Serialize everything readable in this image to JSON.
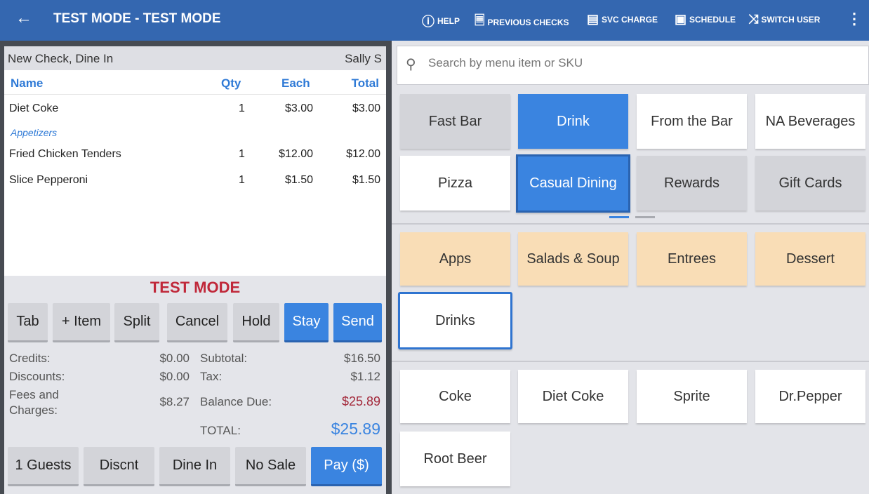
{
  "header": {
    "title": "TEST MODE - TEST MODE",
    "actions": [
      {
        "label": "HELP",
        "icon": "help-circle-icon"
      },
      {
        "label": "PREVIOUS CHECKS",
        "icon": "receipt-back-icon"
      },
      {
        "label": "SVC CHARGE",
        "icon": "card-icon"
      },
      {
        "label": "SCHEDULE",
        "icon": "calendar-icon"
      },
      {
        "label": "SWITCH USER",
        "icon": "shuffle-icon"
      }
    ]
  },
  "check": {
    "title": "New Check, Dine In",
    "server": "Sally S",
    "columns": [
      "Name",
      "Qty",
      "Each",
      "Total"
    ],
    "rows": [
      {
        "name": "Diet Coke",
        "qty": "1",
        "each": "$3.00",
        "total": "$3.00"
      },
      {
        "category": "Appetizers"
      },
      {
        "name": "Fried Chicken Tenders",
        "qty": "1",
        "each": "$12.00",
        "total": "$12.00"
      },
      {
        "name": "Slice Pepperoni",
        "qty": "1",
        "each": "$1.50",
        "total": "$1.50"
      }
    ],
    "mode_banner": "TEST MODE",
    "actions": [
      "Tab",
      "+ Item",
      "Split",
      "Cancel",
      "Hold",
      "Stay",
      "Send"
    ],
    "totals": {
      "credits_label": "Credits:",
      "credits": "$0.00",
      "discounts_label": "Discounts:",
      "discounts": "$0.00",
      "fees_label": "Fees and Charges:",
      "fees": "$8.27",
      "subtotal_label": "Subtotal:",
      "subtotal": "$16.50",
      "tax_label": "Tax:",
      "tax": "$1.12",
      "balance_label": "Balance Due:",
      "balance": "$25.89",
      "total_label": "TOTAL:",
      "total": "$25.89"
    },
    "footer": [
      "1 Guests",
      "Discnt",
      "Dine In",
      "No Sale",
      "Pay ($)"
    ]
  },
  "search": {
    "placeholder": "Search by menu item or SKU"
  },
  "menus": [
    "Fast Bar",
    "Drink",
    "From the Bar",
    "NA Beverages",
    "Pizza",
    "Casual Dining",
    "Rewards",
    "Gift Cards"
  ],
  "categories": [
    "Apps",
    "Salads & Soup",
    "Entrees",
    "Dessert",
    "Drinks"
  ],
  "items": [
    "Coke",
    "Diet Coke",
    "Sprite",
    "Dr.Pepper",
    "Root Beer"
  ],
  "colors": {
    "accent": "#3a84e0",
    "header": "#3467b0",
    "danger": "#c0283a",
    "category": "#f9ddb6"
  }
}
